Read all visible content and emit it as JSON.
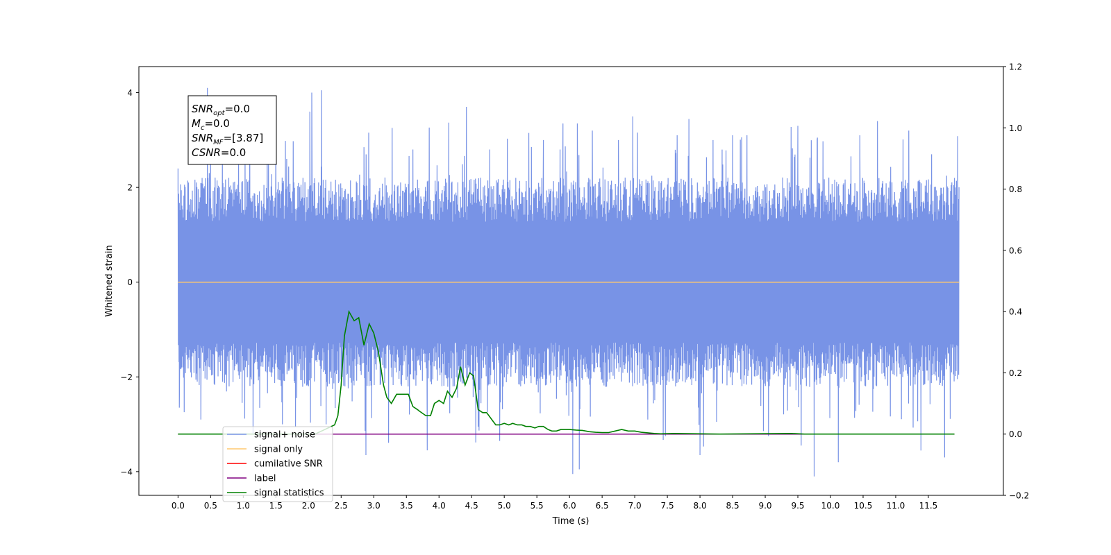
{
  "chart_data": {
    "type": "line",
    "xlabel": "Time (s)",
    "ylabel": "Whitened strain",
    "ylabel_right": "",
    "xlim": [
      -0.6,
      12.65
    ],
    "ylim": [
      -4.5,
      4.55
    ],
    "ylim_right": [
      -0.2,
      1.2
    ],
    "xticks": [
      "0.0",
      "0.5",
      "1.0",
      "1.5",
      "2.0",
      "2.5",
      "3.0",
      "3.5",
      "4.0",
      "4.5",
      "5.0",
      "5.5",
      "6.0",
      "6.5",
      "7.0",
      "7.5",
      "8.0",
      "8.5",
      "9.0",
      "9.5",
      "10.0",
      "10.5",
      "11.0",
      "11.5"
    ],
    "yticks_left": [
      "4",
      "2",
      "0",
      "−2",
      "−4"
    ],
    "yticks_right": [
      "1.2",
      "1.0",
      "0.8",
      "0.6",
      "0.4",
      "0.2",
      "0.0",
      "−0.2"
    ],
    "grid": false,
    "legend_position": "lower-left",
    "annotation": {
      "lines": [
        {
          "base": "SNR",
          "sub": "opt",
          "value": "=0.0"
        },
        {
          "base": "M",
          "sub": "c",
          "value": "=0.0"
        },
        {
          "base": "SNR",
          "sub": "MF",
          "value": "=[3.87]"
        },
        {
          "base": "CSNR",
          "sub": "",
          "value": "=0.0"
        }
      ]
    },
    "series": [
      {
        "name": "signal+ noise",
        "axis": "left",
        "color": "#7893e6",
        "kind": "noise",
        "x_range": [
          0.0,
          11.97
        ],
        "typical_range": [
          -1.7,
          1.7
        ],
        "spikes": [
          [
            0.0,
            2.4
          ],
          [
            0.02,
            -2.65
          ],
          [
            0.35,
            -2.9
          ],
          [
            0.45,
            4.1
          ],
          [
            0.68,
            2.8
          ],
          [
            1.1,
            3.45
          ],
          [
            1.15,
            -3.2
          ],
          [
            1.5,
            3.2
          ],
          [
            1.6,
            -3.0
          ],
          [
            2.02,
            3.6
          ],
          [
            2.05,
            4.0
          ],
          [
            2.2,
            4.05
          ],
          [
            2.27,
            -3.0
          ],
          [
            2.85,
            2.85
          ],
          [
            2.88,
            -3.65
          ],
          [
            3.6,
            2.8
          ],
          [
            3.82,
            -3.55
          ],
          [
            4.42,
            3.7
          ],
          [
            4.6,
            -3.05
          ],
          [
            4.93,
            -3.35
          ],
          [
            5.6,
            3.0
          ],
          [
            5.9,
            3.35
          ],
          [
            6.05,
            -4.05
          ],
          [
            6.12,
            3.35
          ],
          [
            6.15,
            -3.95
          ],
          [
            6.35,
            3.2
          ],
          [
            6.75,
            3.0
          ],
          [
            6.97,
            3.5
          ],
          [
            7.2,
            -2.9
          ],
          [
            7.47,
            -3.25
          ],
          [
            7.65,
            3.1
          ],
          [
            8.0,
            -3.65
          ],
          [
            8.2,
            3.0
          ],
          [
            8.5,
            3.1
          ],
          [
            8.72,
            3.1
          ],
          [
            9.05,
            -3.25
          ],
          [
            9.5,
            3.3
          ],
          [
            9.75,
            -4.1
          ],
          [
            9.8,
            3.05
          ],
          [
            10.12,
            -3.8
          ],
          [
            10.45,
            3.1
          ],
          [
            10.72,
            3.4
          ],
          [
            11.2,
            3.2
          ],
          [
            11.55,
            2.7
          ],
          [
            11.75,
            -3.7
          ],
          [
            11.9,
            2.2
          ]
        ]
      },
      {
        "name": "signal only",
        "axis": "left",
        "color": "#ffc86e",
        "kind": "line",
        "x": [
          0.0,
          11.97
        ],
        "y": [
          0.0,
          0.0
        ]
      },
      {
        "name": "cumilative SNR",
        "axis": "right",
        "color": "#ff0000",
        "kind": "line",
        "x": [
          0.0,
          11.9
        ],
        "y": [
          0.0,
          0.0
        ]
      },
      {
        "name": "label",
        "axis": "right",
        "color": "#800080",
        "kind": "line",
        "x": [
          0.0,
          11.9
        ],
        "y": [
          0.0,
          0.0
        ]
      },
      {
        "name": "signal statistics",
        "axis": "right",
        "color": "#008000",
        "kind": "line",
        "x": [
          0.0,
          2.1,
          2.2,
          2.3,
          2.4,
          2.45,
          2.5,
          2.55,
          2.62,
          2.7,
          2.77,
          2.85,
          2.93,
          3.0,
          3.07,
          3.15,
          3.2,
          3.27,
          3.35,
          3.4,
          3.47,
          3.53,
          3.6,
          3.67,
          3.7,
          3.8,
          3.87,
          3.93,
          4.0,
          4.07,
          4.13,
          4.2,
          4.27,
          4.33,
          4.4,
          4.47,
          4.53,
          4.6,
          4.67,
          4.73,
          4.8,
          4.87,
          4.93,
          5.0,
          5.07,
          5.13,
          5.2,
          5.27,
          5.33,
          5.4,
          5.47,
          5.53,
          5.6,
          5.67,
          5.73,
          5.8,
          5.87,
          5.93,
          6.0,
          6.1,
          6.2,
          6.3,
          6.4,
          6.5,
          6.6,
          6.7,
          6.8,
          6.9,
          7.0,
          7.1,
          7.2,
          7.3,
          7.4,
          7.6,
          8.0,
          8.3,
          9.4,
          9.6,
          11.9
        ],
        "y": [
          0.0,
          0.0,
          0.01,
          0.02,
          0.03,
          0.06,
          0.16,
          0.32,
          0.4,
          0.37,
          0.38,
          0.29,
          0.36,
          0.33,
          0.27,
          0.16,
          0.12,
          0.1,
          0.13,
          0.13,
          0.13,
          0.13,
          0.09,
          0.08,
          0.075,
          0.06,
          0.06,
          0.1,
          0.11,
          0.1,
          0.14,
          0.12,
          0.15,
          0.22,
          0.16,
          0.2,
          0.19,
          0.08,
          0.07,
          0.07,
          0.05,
          0.03,
          0.03,
          0.035,
          0.03,
          0.035,
          0.03,
          0.03,
          0.025,
          0.025,
          0.02,
          0.025,
          0.025,
          0.015,
          0.01,
          0.01,
          0.015,
          0.015,
          0.015,
          0.013,
          0.012,
          0.008,
          0.006,
          0.005,
          0.005,
          0.01,
          0.015,
          0.01,
          0.01,
          0.006,
          0.004,
          0.002,
          0.001,
          0.002,
          0.001,
          0.0,
          0.002,
          0.0,
          0.0
        ]
      }
    ]
  }
}
